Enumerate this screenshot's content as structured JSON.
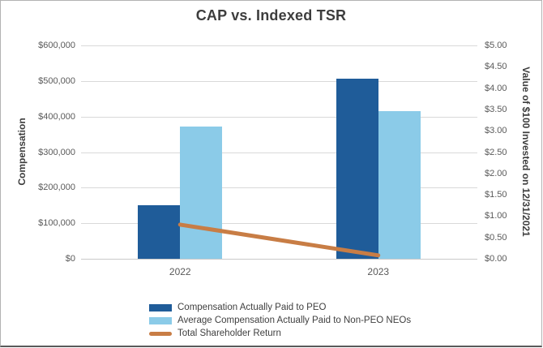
{
  "chart_data": {
    "type": "bar-line-combo",
    "title": "CAP vs. Indexed TSR",
    "categories": [
      "2022",
      "2023"
    ],
    "bar_series": [
      {
        "name": "Compensation Actually Paid to PEO",
        "axis": "left",
        "color": "#1F5C99",
        "values": [
          150000,
          507000
        ]
      },
      {
        "name": "Average Compensation Actually Paid to Non-PEO NEOs",
        "axis": "left",
        "color": "#8BCBE8",
        "values": [
          373000,
          415000
        ]
      }
    ],
    "line_series": [
      {
        "name": "Total Shareholder Return",
        "axis": "right",
        "color": "#C87D45",
        "values": [
          0.8,
          0.08
        ]
      }
    ],
    "left_axis": {
      "title": "Compensation",
      "min": 0,
      "max": 600000,
      "tick_step": 100000,
      "tick_labels_top_to_bottom": [
        "$600,000",
        "$500,000",
        "$400,000",
        "$300,000",
        "$200,000",
        "$100,000",
        "$0"
      ]
    },
    "right_axis": {
      "title": "Value of $100 Invested on 12/31/2021",
      "min": 0,
      "max": 5,
      "tick_step": 0.5,
      "tick_labels_top_to_bottom": [
        "$5.00",
        "$4.50",
        "$4.00",
        "$3.50",
        "$3.00",
        "$2.50",
        "$2.00",
        "$1.50",
        "$1.00",
        "$0.50",
        "$0.00"
      ]
    },
    "grid": true,
    "legend_position": "bottom"
  }
}
